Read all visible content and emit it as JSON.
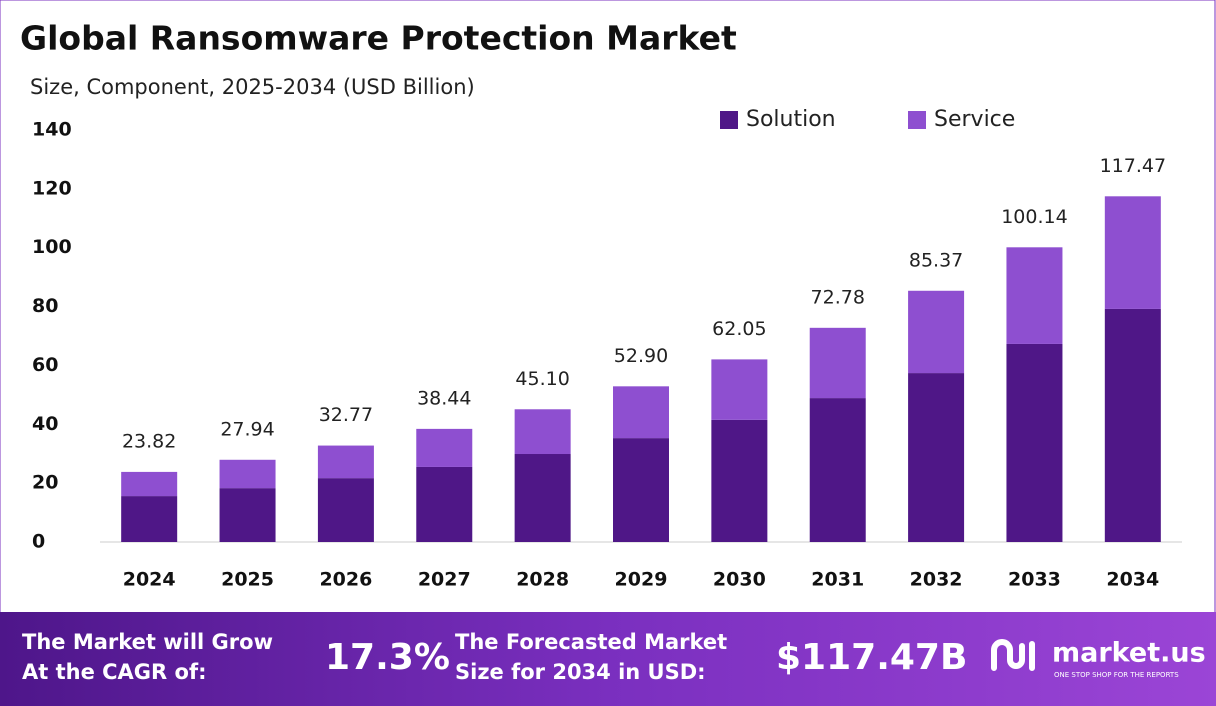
{
  "chart_data": {
    "type": "stacked-bar",
    "title": "Global Ransomware Protection Market",
    "subtitle": "Size, Component, 2025-2034 (USD Billion)",
    "categories": [
      "2024",
      "2025",
      "2026",
      "2027",
      "2028",
      "2029",
      "2030",
      "2031",
      "2032",
      "2033",
      "2034"
    ],
    "series": [
      {
        "name": "Solution",
        "color": "#4f1787",
        "values": [
          15.6,
          18.3,
          21.7,
          25.5,
          29.9,
          35.3,
          41.5,
          48.9,
          57.4,
          67.3,
          79.2
        ]
      },
      {
        "name": "Service",
        "color": "#8e4fd0",
        "values": [
          8.22,
          9.64,
          11.07,
          12.94,
          15.2,
          17.6,
          20.55,
          23.88,
          27.97,
          32.84,
          38.27
        ]
      }
    ],
    "totals": [
      23.82,
      27.94,
      32.77,
      38.44,
      45.1,
      52.9,
      62.05,
      72.78,
      85.37,
      100.14,
      117.47
    ],
    "total_labels": [
      "23.82",
      "27.94",
      "32.77",
      "38.44",
      "45.10",
      "52.90",
      "62.05",
      "72.78",
      "85.37",
      "100.14",
      "117.47"
    ],
    "ylim": [
      0,
      140
    ],
    "yticks": [
      0,
      20,
      40,
      60,
      80,
      100,
      120,
      140
    ],
    "grid": false,
    "legend": "top-right"
  },
  "footer": {
    "cagr_lines": [
      "The Market will Grow",
      "At the CAGR of:"
    ],
    "cagr": "17.3%",
    "forecast_lines": [
      "The Forecasted Market",
      "Size for 2034 in USD:"
    ],
    "forecast": "$117.47B",
    "brand": "market.us",
    "tagline": "ONE STOP SHOP FOR THE REPORTS"
  }
}
